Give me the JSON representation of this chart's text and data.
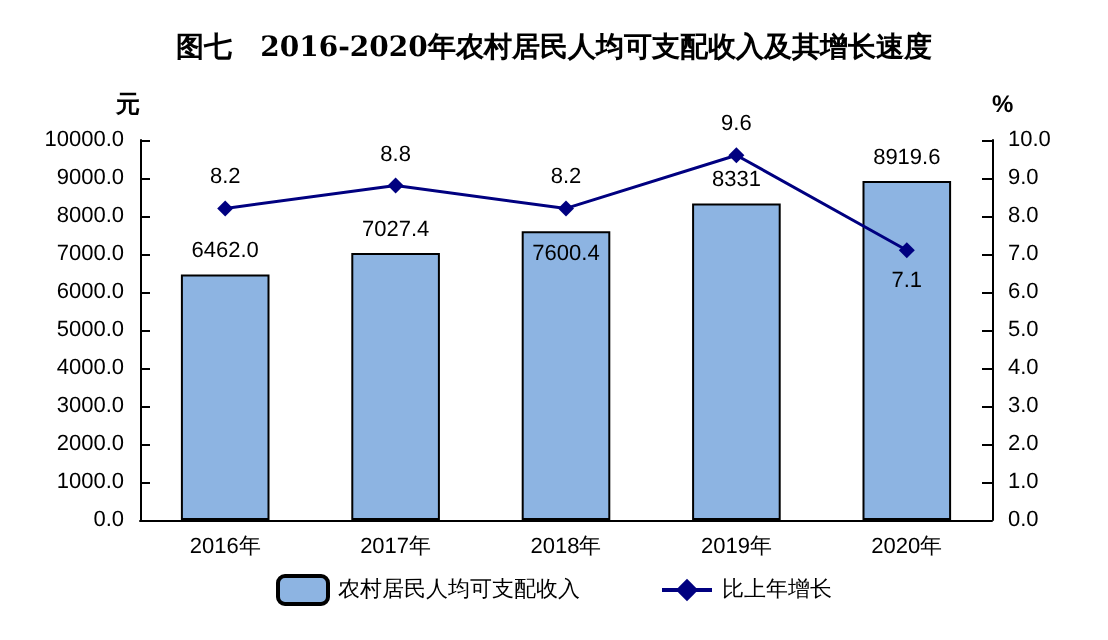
{
  "chart_data": {
    "type": "bar",
    "title": "图七　2016-2020年农村居民人均可支配收入及其增长速度",
    "ylabel": "元",
    "y2label": "%",
    "categories": [
      "2016年",
      "2017年",
      "2018年",
      "2019年",
      "2020年"
    ],
    "series": [
      {
        "name": "农村居民人均可支配收入",
        "color": "#8db4e2",
        "values": [
          6462.0,
          7027.4,
          7600.4,
          8331,
          8919.6
        ],
        "value_labels": [
          "6462.0",
          "7027.4",
          "7600.4",
          "8331",
          "8919.6"
        ]
      },
      {
        "name": "比上年增长",
        "type": "line",
        "axis": "y2",
        "color": "#000080",
        "values": [
          8.2,
          8.8,
          8.2,
          9.6,
          7.1
        ],
        "value_labels": [
          "8.2",
          "8.8",
          "8.2",
          "9.6",
          "7.1"
        ],
        "marker": "diamond"
      }
    ],
    "ylim": [
      0,
      10000
    ],
    "yticks": [
      {
        "value": 0,
        "label": "0.0"
      },
      {
        "value": 1000,
        "label": "1000.0"
      },
      {
        "value": 2000,
        "label": "2000.0"
      },
      {
        "value": 3000,
        "label": "3000.0"
      },
      {
        "value": 4000,
        "label": "4000.0"
      },
      {
        "value": 5000,
        "label": "5000.0"
      },
      {
        "value": 6000,
        "label": "6000.0"
      },
      {
        "value": 7000,
        "label": "7000.0"
      },
      {
        "value": 8000,
        "label": "8000.0"
      },
      {
        "value": 9000,
        "label": "9000.0"
      },
      {
        "value": 10000,
        "label": "10000.0"
      }
    ],
    "y2lim": [
      0,
      10
    ],
    "y2ticks": [
      {
        "value": 0,
        "label": "0.0"
      },
      {
        "value": 1,
        "label": "1.0"
      },
      {
        "value": 2,
        "label": "2.0"
      },
      {
        "value": 3,
        "label": "3.0"
      },
      {
        "value": 4,
        "label": "4.0"
      },
      {
        "value": 5,
        "label": "5.0"
      },
      {
        "value": 6,
        "label": "6.0"
      },
      {
        "value": 7,
        "label": "7.0"
      },
      {
        "value": 8,
        "label": "8.0"
      },
      {
        "value": 9,
        "label": "9.0"
      },
      {
        "value": 10,
        "label": "10.0"
      }
    ],
    "grid": false,
    "legend": "bottom"
  }
}
